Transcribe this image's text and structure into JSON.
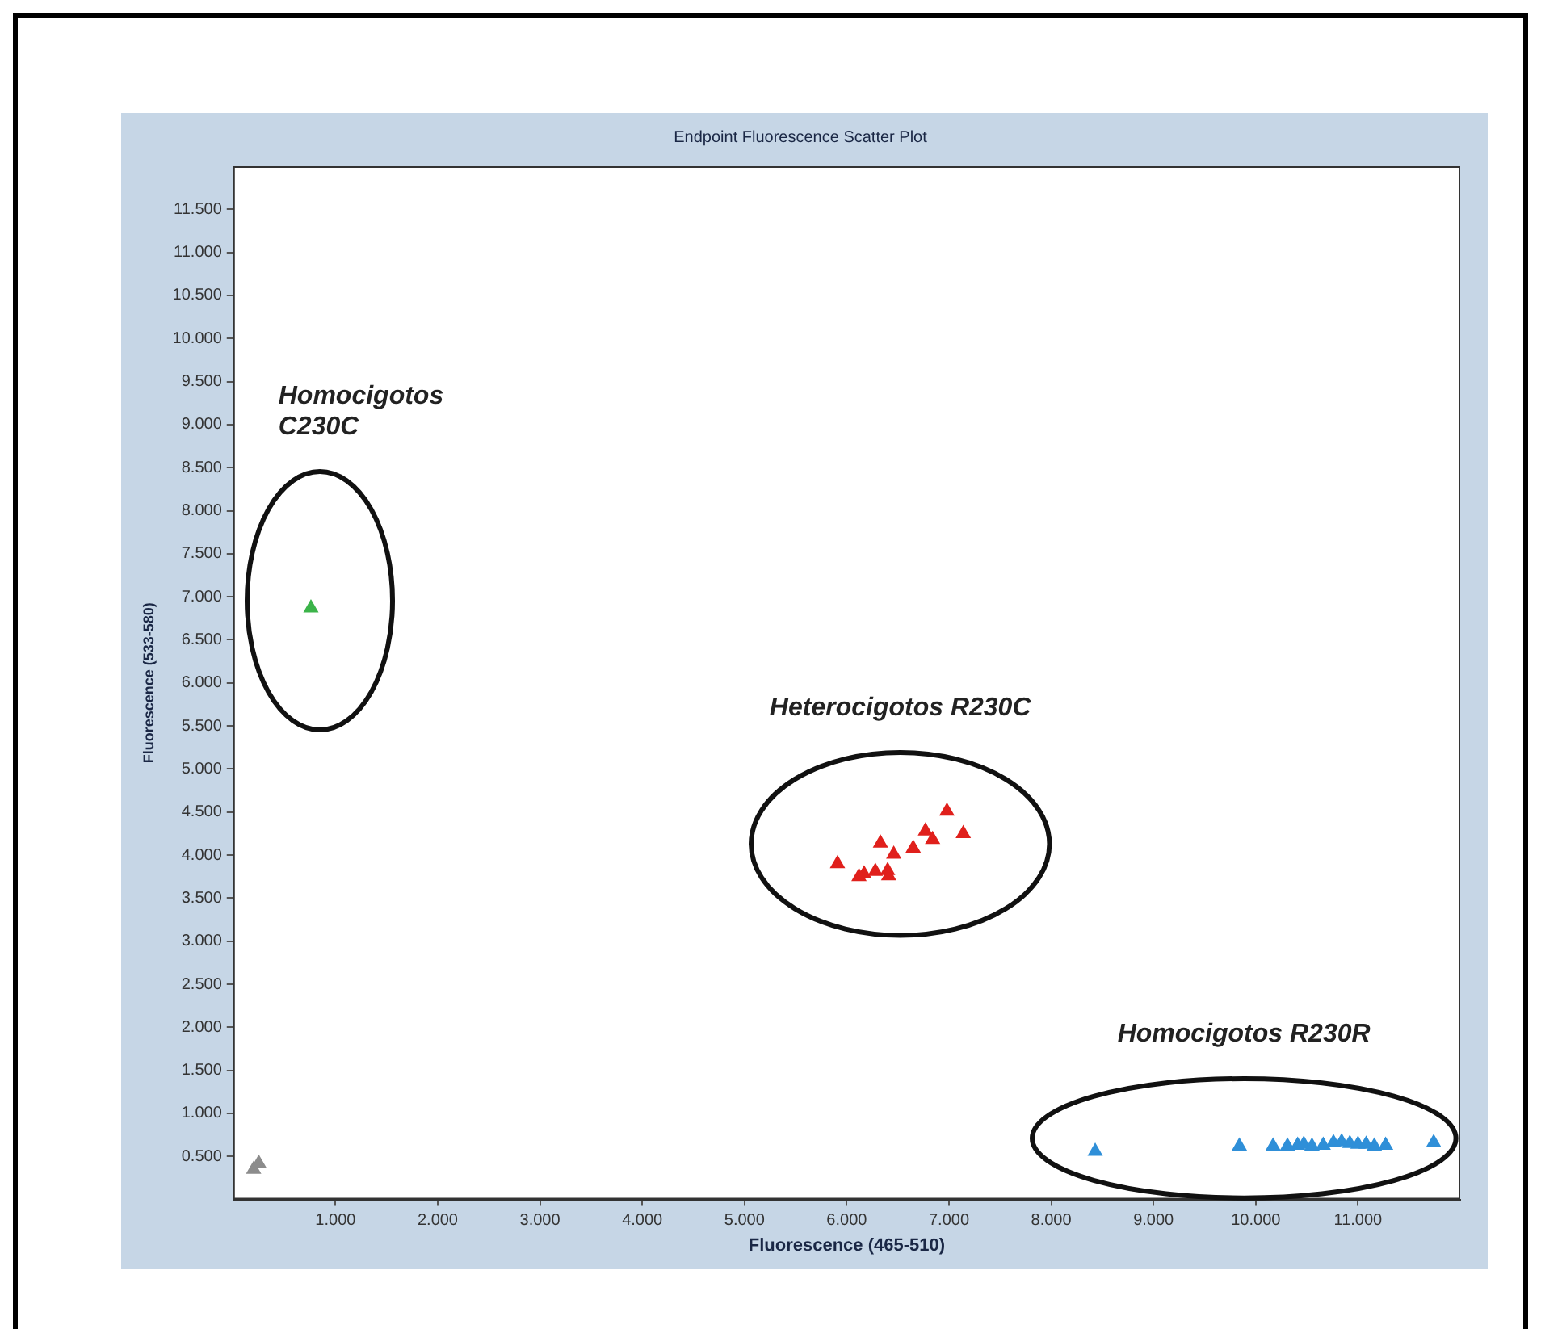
{
  "chart_data": {
    "type": "scatter",
    "title": "Endpoint Fluorescence Scatter Plot",
    "xlabel": "Fluorescence (465-510)",
    "ylabel": "Fluorescence (533-580)",
    "xlim": [
      0,
      12
    ],
    "ylim": [
      0,
      12
    ],
    "xticks": [
      {
        "value": 1,
        "label": "1.000"
      },
      {
        "value": 2,
        "label": "2.000"
      },
      {
        "value": 3,
        "label": "3.000"
      },
      {
        "value": 4,
        "label": "4.000"
      },
      {
        "value": 5,
        "label": "5.000"
      },
      {
        "value": 6,
        "label": "6.000"
      },
      {
        "value": 7,
        "label": "7.000"
      },
      {
        "value": 8,
        "label": "8.000"
      },
      {
        "value": 9,
        "label": "9.000"
      },
      {
        "value": 10,
        "label": "10.000"
      },
      {
        "value": 11,
        "label": "11.000"
      }
    ],
    "yticks": [
      {
        "value": 0.5,
        "label": "0.500"
      },
      {
        "value": 1,
        "label": "1.000"
      },
      {
        "value": 1.5,
        "label": "1.500"
      },
      {
        "value": 2,
        "label": "2.000"
      },
      {
        "value": 2.5,
        "label": "2.500"
      },
      {
        "value": 3,
        "label": "3.000"
      },
      {
        "value": 3.5,
        "label": "3.500"
      },
      {
        "value": 4,
        "label": "4.000"
      },
      {
        "value": 4.5,
        "label": "4.500"
      },
      {
        "value": 5,
        "label": "5.000"
      },
      {
        "value": 5.5,
        "label": "5.500"
      },
      {
        "value": 6,
        "label": "6.000"
      },
      {
        "value": 6.5,
        "label": "6.500"
      },
      {
        "value": 7,
        "label": "7.000"
      },
      {
        "value": 7.5,
        "label": "7.500"
      },
      {
        "value": 8,
        "label": "8.000"
      },
      {
        "value": 8.5,
        "label": "8.500"
      },
      {
        "value": 9,
        "label": "9.000"
      },
      {
        "value": 9.5,
        "label": "9.500"
      },
      {
        "value": 10,
        "label": "10.000"
      },
      {
        "value": 10.5,
        "label": "10.500"
      },
      {
        "value": 11,
        "label": "11.000"
      },
      {
        "value": 11.5,
        "label": "11.500"
      }
    ],
    "marker": "triangle",
    "series": [
      {
        "color": "#8c8c8c",
        "x": [
          0.2,
          0.25
        ],
        "values": [
          0.35,
          0.42
        ]
      },
      {
        "color": "#3cb44a",
        "x": [
          0.76
        ],
        "values": [
          6.87
        ]
      },
      {
        "color": "#e0201c",
        "x": [
          6.98,
          7.14,
          6.77,
          6.84,
          6.65,
          6.33,
          6.46,
          5.91,
          6.4,
          6.28,
          6.17,
          6.12,
          6.41
        ],
        "values": [
          4.51,
          4.25,
          4.28,
          4.18,
          4.08,
          4.14,
          4.01,
          3.9,
          3.82,
          3.81,
          3.78,
          3.75,
          3.76
        ]
      },
      {
        "color": "#2f8fd8",
        "x": [
          8.43,
          9.84,
          10.17,
          10.31,
          10.41,
          10.47,
          10.55,
          10.66,
          10.76,
          10.84,
          10.92,
          11.0,
          11.08,
          11.16,
          11.27,
          11.74
        ],
        "values": [
          0.56,
          0.62,
          0.62,
          0.62,
          0.63,
          0.64,
          0.62,
          0.63,
          0.66,
          0.67,
          0.65,
          0.64,
          0.64,
          0.62,
          0.63,
          0.66
        ]
      }
    ],
    "annotations": [
      "Homocigotos C230C",
      "Heterocigotos R230C",
      "Homocigotos R230R"
    ]
  }
}
